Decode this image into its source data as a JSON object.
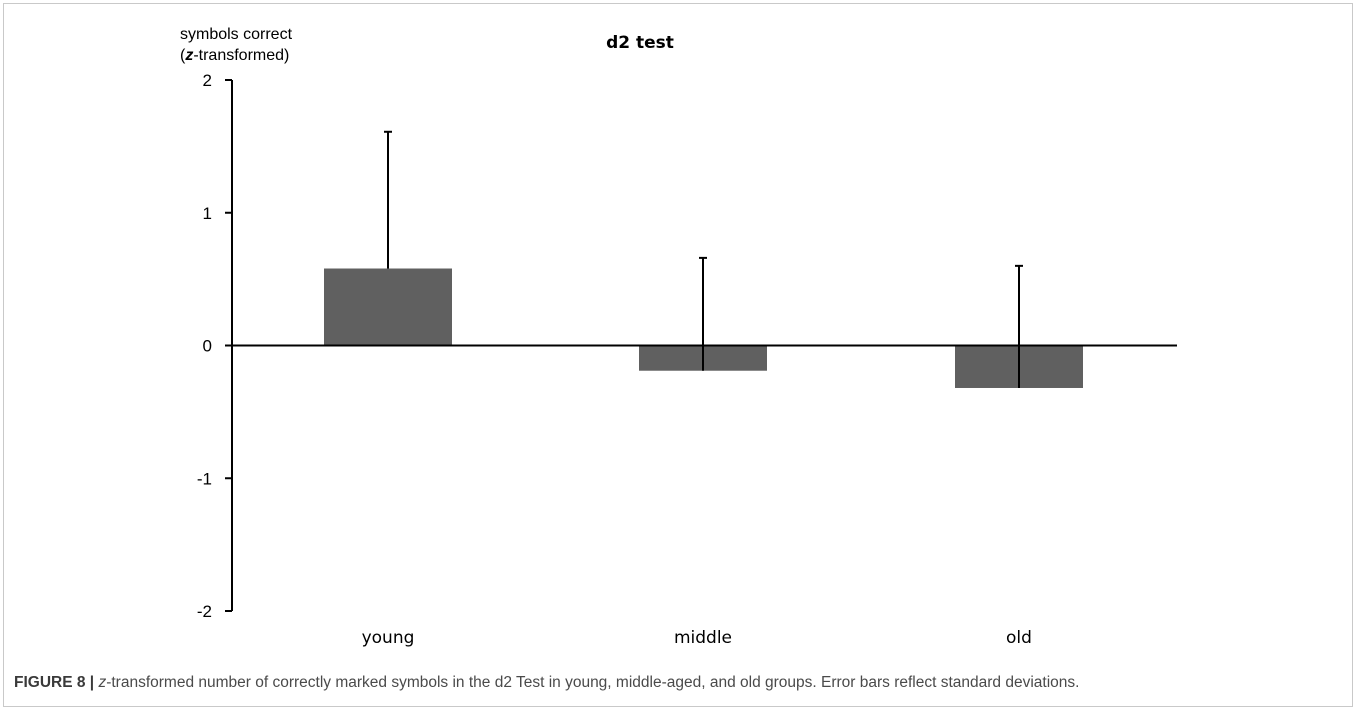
{
  "chart_data": {
    "type": "bar",
    "title": "d2 test",
    "ylabel": {
      "line1": "symbols correct",
      "line2_open": "(",
      "line2_italic": "z",
      "line2_rest": "-transformed)"
    },
    "xlabel": "",
    "ylim": [
      -2,
      2
    ],
    "yticks": [
      2,
      1,
      0,
      -1,
      -2
    ],
    "ytick_labels": [
      "2",
      "1",
      "0",
      "-1",
      "-2"
    ],
    "categories": [
      "young",
      "middle",
      "old"
    ],
    "values": [
      0.58,
      -0.19,
      -0.32
    ],
    "error_upper": [
      1.61,
      0.66,
      0.6
    ],
    "error_lower": [
      0.58,
      -0.19,
      -0.32
    ],
    "bar_color": "#606060",
    "axis_color": "#000000",
    "grid": false,
    "legend": "none"
  },
  "caption": {
    "label": "FIGURE 8 |",
    "italic_z": "z",
    "text": "-transformed number of correctly marked symbols in the d2 Test in young, middle-aged, and old groups. Error bars reflect standard deviations."
  }
}
